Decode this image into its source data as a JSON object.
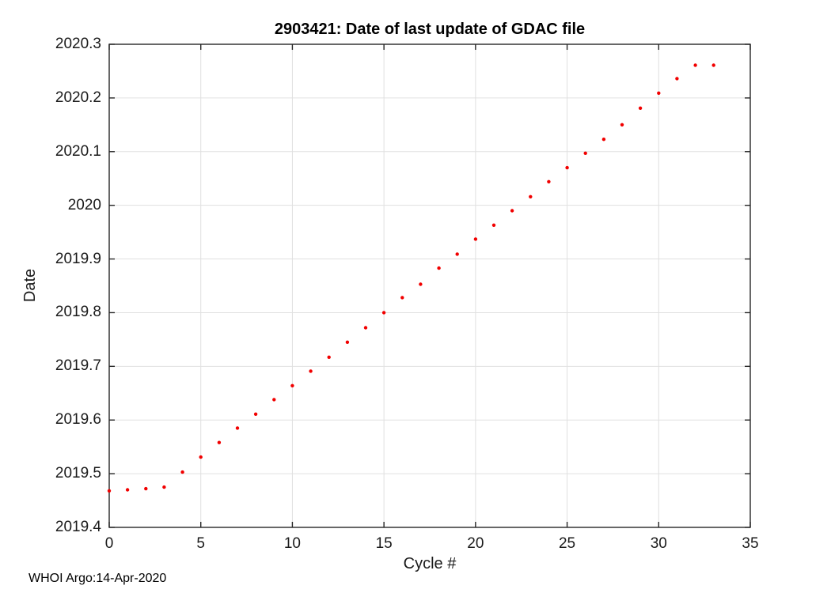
{
  "figure": {
    "footer": "WHOI Argo:14-Apr-2020"
  },
  "chart_data": {
    "type": "scatter",
    "title": "2903421: Date of last update of GDAC file",
    "xlabel": "Cycle #",
    "ylabel": "Date",
    "xlim": [
      0,
      35
    ],
    "ylim": [
      2019.4,
      2020.3
    ],
    "xticks": [
      0,
      5,
      10,
      15,
      20,
      25,
      30,
      35
    ],
    "xtick_labels": [
      "0",
      "5",
      "10",
      "15",
      "20",
      "25",
      "30",
      "35"
    ],
    "yticks": [
      2019.4,
      2019.5,
      2019.6,
      2019.7,
      2019.8,
      2019.9,
      2020,
      2020.1,
      2020.2,
      2020.3
    ],
    "ytick_labels": [
      "2019.4",
      "2019.5",
      "2019.6",
      "2019.7",
      "2019.8",
      "2019.9",
      "2020",
      "2020.1",
      "2020.2",
      "2020.3"
    ],
    "grid": true,
    "legend": "none",
    "colors": {
      "marker": "#f10000",
      "grid": "#e0e0e0",
      "axis": "#262626",
      "background": "#ffffff"
    },
    "marker": {
      "shape": "dot",
      "radius": 2.2
    },
    "series": [
      {
        "name": "gdac-last-update-date",
        "x": [
          0,
          1,
          2,
          3,
          4,
          5,
          6,
          7,
          8,
          9,
          10,
          11,
          12,
          13,
          14,
          15,
          16,
          17,
          18,
          19,
          20,
          21,
          22,
          23,
          24,
          25,
          26,
          27,
          28,
          29,
          30,
          31,
          32,
          33
        ],
        "y": [
          2019.468,
          2019.47,
          2019.472,
          2019.475,
          2019.503,
          2019.531,
          2019.558,
          2019.585,
          2019.611,
          2019.638,
          2019.664,
          2019.691,
          2019.717,
          2019.745,
          2019.772,
          2019.8,
          2019.828,
          2019.853,
          2019.883,
          2019.909,
          2019.937,
          2019.963,
          2019.99,
          2020.016,
          2020.044,
          2020.07,
          2020.097,
          2020.123,
          2020.15,
          2020.181,
          2020.209,
          2020.236,
          2020.261,
          2020.261
        ]
      }
    ],
    "footer": "WHOI Argo:14-Apr-2020"
  }
}
